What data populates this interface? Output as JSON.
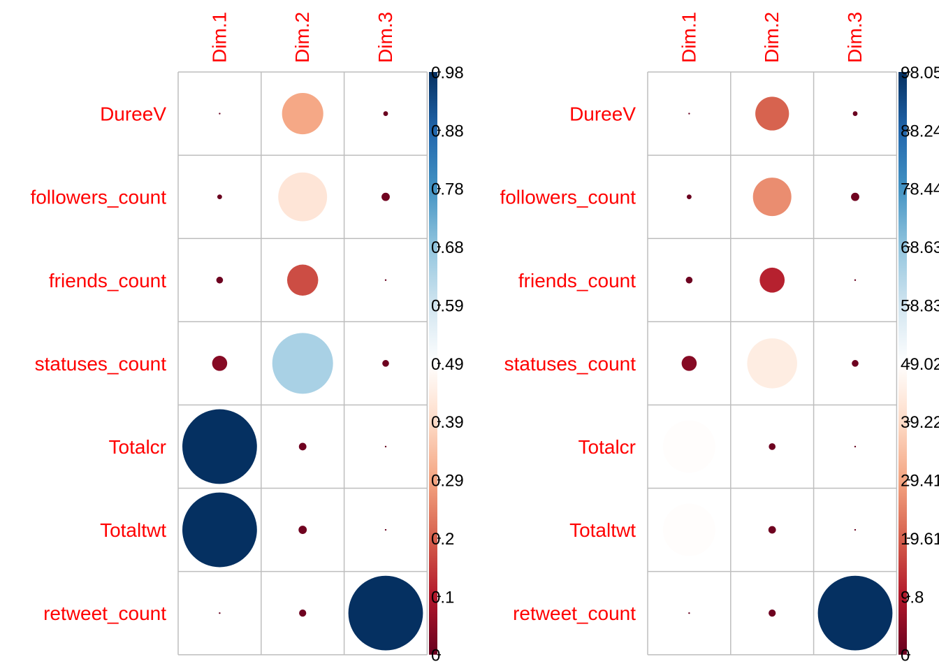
{
  "chart_data": [
    {
      "type": "heatmap",
      "style": "circle",
      "columns": [
        "Dim.1",
        "Dim.2",
        "Dim.3"
      ],
      "rows": [
        "DureeV",
        "followers_count",
        "friends_count",
        "statuses_count",
        "Totalcr",
        "Totaltwt",
        "retweet_count"
      ],
      "values": [
        [
          0.0003,
          0.3,
          0.004
        ],
        [
          0.004,
          0.42,
          0.012
        ],
        [
          0.008,
          0.17,
          0.0005
        ],
        [
          0.04,
          0.65,
          0.008
        ],
        [
          0.98,
          0.01,
          0.0002
        ],
        [
          0.98,
          0.012,
          0.0002
        ],
        [
          0.0002,
          0.009,
          0.98
        ]
      ],
      "scale": {
        "min": 0,
        "max": 0.98
      },
      "colorbar_ticks": [
        "0",
        "0.1",
        "0.2",
        "0.29",
        "0.39",
        "0.49",
        "0.59",
        "0.68",
        "0.78",
        "0.88",
        "0.98"
      ],
      "colors": [
        "#67001F",
        "#B2182B",
        "#D6604D",
        "#F4A582",
        "#FDDBC7",
        "#FFFFFF",
        "#D1E5F0",
        "#92C5DE",
        "#4393C3",
        "#2166AC",
        "#053061"
      ],
      "label_color": "#ff0000",
      "grid_color": "#bebebe",
      "legend": "right"
    },
    {
      "type": "heatmap",
      "style": "circle",
      "columns": [
        "Dim.1",
        "Dim.2",
        "Dim.3"
      ],
      "rows": [
        "DureeV",
        "followers_count",
        "friends_count",
        "statuses_count",
        "Totalcr",
        "Totaltwt",
        "retweet_count"
      ],
      "values": [
        [
          0.03,
          20.0,
          0.4
        ],
        [
          0.4,
          26.0,
          1.2
        ],
        [
          0.8,
          11.0,
          0.05
        ],
        [
          4.0,
          44.0,
          0.8
        ],
        [
          48.5,
          0.8,
          0.02
        ],
        [
          48.5,
          1.0,
          0.02
        ],
        [
          0.02,
          0.9,
          98.05
        ]
      ],
      "scale": {
        "min": 0,
        "max": 98.05
      },
      "colorbar_ticks": [
        "0",
        "9.8",
        "19.61",
        "29.41",
        "39.22",
        "49.02",
        "58.83",
        "68.63",
        "78.44",
        "88.24",
        "98.05"
      ],
      "colors": [
        "#67001F",
        "#B2182B",
        "#D6604D",
        "#F4A582",
        "#FDDBC7",
        "#FFFFFF",
        "#D1E5F0",
        "#92C5DE",
        "#4393C3",
        "#2166AC",
        "#053061"
      ],
      "label_color": "#ff0000",
      "grid_color": "#bebebe",
      "legend": "right"
    }
  ]
}
